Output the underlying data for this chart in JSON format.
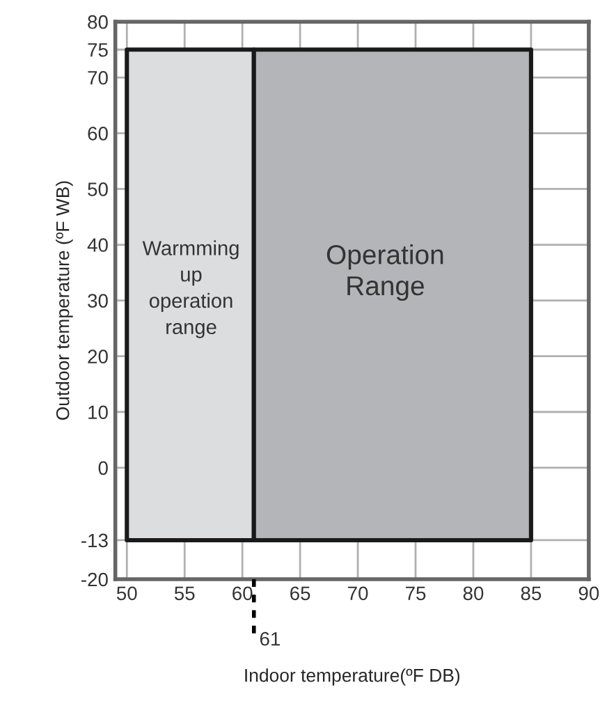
{
  "chart_data": {
    "type": "area",
    "xlabel": "Indoor temperature(ºF DB)",
    "ylabel": "Outdoor temperature (ºF WB)",
    "series": [
      {
        "x": [
          50,
          50,
          61,
          61
        ],
        "values": [
          -13,
          75,
          75,
          -13
        ],
        "color": "#dcdddf"
      },
      {
        "x": [
          61,
          61,
          85,
          85
        ],
        "values": [
          -13,
          75,
          75,
          -13
        ],
        "color": "#b3b5b8"
      }
    ],
    "annotations": [
      "Warmming\nup\noperation\nrange",
      "Operation\nRange"
    ],
    "ref_lines": [
      {
        "axis": "x",
        "value": 61,
        "label": "61",
        "line_style": "dashed",
        "color": "#000000"
      }
    ],
    "xlim": [
      49,
      90
    ],
    "ylim": [
      -20,
      80
    ],
    "xticks": [
      50,
      55,
      60,
      65,
      70,
      75,
      80,
      85,
      90
    ],
    "yticks": [
      -20,
      -13,
      0,
      10,
      20,
      30,
      40,
      50,
      60,
      70,
      75,
      80
    ],
    "grid": true
  }
}
